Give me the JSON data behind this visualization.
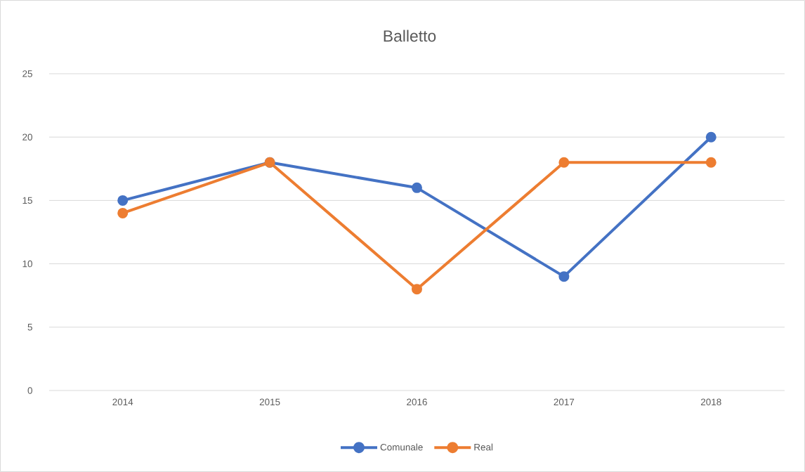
{
  "chart_data": {
    "type": "line",
    "title": "Balletto",
    "categories": [
      "2014",
      "2015",
      "2016",
      "2017",
      "2018"
    ],
    "series": [
      {
        "name": "Comunale",
        "color": "#4472c4",
        "values": [
          15,
          18,
          16,
          9,
          20
        ]
      },
      {
        "name": "Real",
        "color": "#ed7d31",
        "values": [
          14,
          18,
          8,
          18,
          18
        ]
      }
    ],
    "ylim": [
      0,
      25
    ],
    "yticks": [
      0,
      5,
      10,
      15,
      20,
      25
    ],
    "grid": "y",
    "legend": "bottom",
    "marker": "circle",
    "line_style": "solid"
  }
}
